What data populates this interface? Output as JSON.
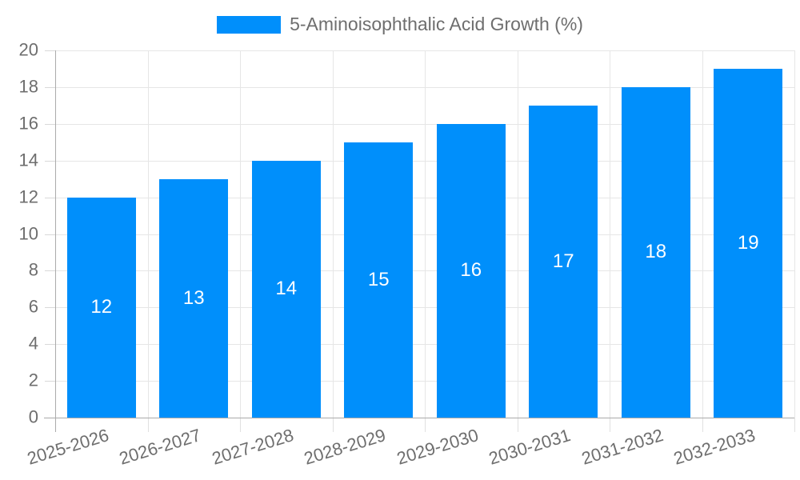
{
  "legend": {
    "label": "5-Aminoisophthalic Acid Growth (%)",
    "position": "top-center"
  },
  "chart_data": {
    "type": "bar",
    "title": "5-Aminoisophthalic Acid Growth (%)",
    "categories": [
      "2025-2026",
      "2026-2027",
      "2027-2028",
      "2028-2029",
      "2029-2030",
      "2030-2031",
      "2031-2032",
      "2032-2033"
    ],
    "series": [
      {
        "name": "5-Aminoisophthalic Acid Growth (%)",
        "values": [
          12,
          13,
          14,
          15,
          16,
          17,
          18,
          19
        ]
      }
    ],
    "xlabel": "",
    "ylabel": "",
    "ylim": [
      0,
      20
    ],
    "yticks": [
      0,
      2,
      4,
      6,
      8,
      10,
      12,
      14,
      16,
      18,
      20
    ],
    "x_label_rotation_deg": -17,
    "grid": "horizontal and vertical light-gray gridlines, open plot frame",
    "legend_position": "top",
    "value_labels": "white numbers centered inside each bar",
    "bar_color": "#008FFB",
    "gridline_color": "#e6e6e6",
    "axis_color": "#ababab",
    "tick_label_color": "#6e6e6e",
    "value_label_color": "#ffffff",
    "background_color": "#ffffff"
  }
}
